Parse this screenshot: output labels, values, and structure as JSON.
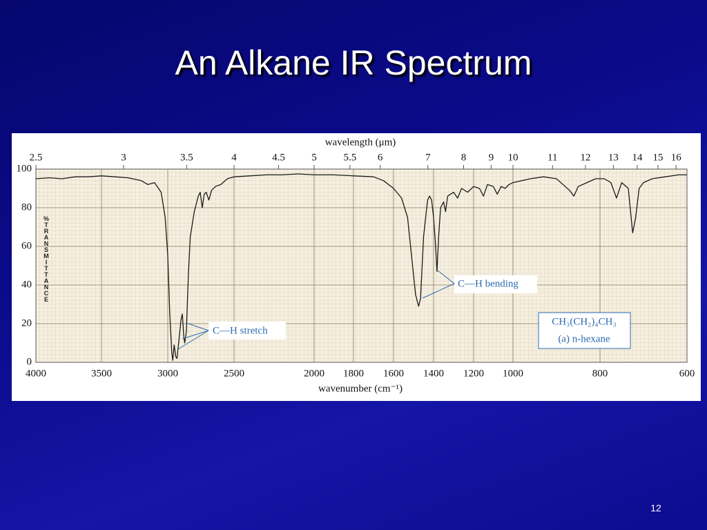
{
  "slide": {
    "title": "An Alkane IR Spectrum",
    "page_number": "12"
  },
  "chart_data": {
    "type": "line",
    "x_label": "wavenumber (cm⁻¹)",
    "x2_label": "wavelength (μm)",
    "y_label": "%TRANSMITTANCE",
    "color": "#1a1a1a",
    "xlim": [
      4000,
      600
    ],
    "xticks": [
      4000,
      3500,
      3000,
      2500,
      2000,
      1800,
      1600,
      1400,
      1200,
      1000,
      800,
      600
    ],
    "x2ticks": [
      2.5,
      3,
      3.5,
      4,
      4.5,
      5,
      5.5,
      6,
      7,
      8,
      9,
      10,
      11,
      12,
      13,
      14,
      15,
      16
    ],
    "ylim": [
      0,
      100
    ],
    "yticks": [
      0,
      20,
      40,
      60,
      80,
      100
    ],
    "grid": true,
    "annotations": [
      "C—H stretch",
      "C—H bending",
      "CH₃(CH₂)₄CH₃",
      "(a) n-hexane"
    ],
    "x": [
      4000,
      3900,
      3800,
      3700,
      3600,
      3500,
      3400,
      3300,
      3200,
      3150,
      3100,
      3050,
      3020,
      3000,
      2985,
      2970,
      2962,
      2952,
      2940,
      2930,
      2915,
      2900,
      2890,
      2880,
      2872,
      2860,
      2845,
      2830,
      2800,
      2770,
      2755,
      2740,
      2725,
      2710,
      2690,
      2670,
      2640,
      2600,
      2550,
      2500,
      2400,
      2300,
      2200,
      2100,
      2000,
      1900,
      1800,
      1700,
      1650,
      1600,
      1560,
      1530,
      1510,
      1490,
      1475,
      1465,
      1450,
      1430,
      1420,
      1410,
      1400,
      1390,
      1383,
      1375,
      1365,
      1350,
      1340,
      1330,
      1300,
      1280,
      1260,
      1230,
      1200,
      1170,
      1150,
      1130,
      1100,
      1080,
      1060,
      1040,
      1020,
      1000,
      960,
      930,
      900,
      880,
      870,
      860,
      850,
      830,
      810,
      790,
      775,
      762,
      750,
      735,
      725,
      718,
      710,
      700,
      680,
      650,
      620,
      600
    ],
    "values": [
      95,
      95.5,
      95,
      96,
      96,
      96.5,
      96,
      95.5,
      94,
      92,
      93,
      88,
      75,
      55,
      25,
      5,
      1,
      9,
      3,
      2,
      12,
      22,
      25,
      14,
      10,
      16,
      45,
      65,
      78,
      86,
      88,
      80,
      87,
      88,
      84,
      89,
      91,
      92,
      95,
      96,
      96.5,
      97,
      97,
      97.5,
      97,
      97,
      96.5,
      96,
      94,
      90,
      85,
      75,
      55,
      35,
      29,
      33,
      65,
      84,
      86,
      84,
      75,
      60,
      47,
      65,
      80,
      83,
      78,
      86,
      88,
      85,
      90,
      88,
      91,
      90,
      86,
      92,
      91,
      87,
      91,
      90,
      92,
      93,
      95,
      96,
      95,
      91,
      89,
      86,
      91,
      93,
      95,
      95,
      93,
      85,
      93,
      90,
      67,
      75,
      90,
      93,
      95,
      96,
      97,
      97
    ]
  }
}
